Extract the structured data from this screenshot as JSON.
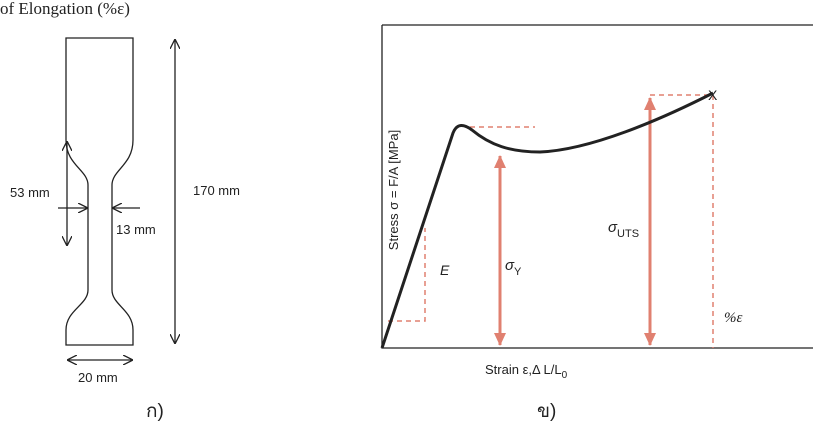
{
  "header": "of Elongation (%ε)",
  "specimen": {
    "gauge_length": "53 mm",
    "gauge_width": "13 mm",
    "total_length": "170 mm",
    "grip_width": "20 mm",
    "caption": "ก)"
  },
  "graph": {
    "y_axis_label": "Stress σ = F/A [MPa]",
    "x_axis_label": {
      "text": "Strain  ε,Δ L/L",
      "subscript": "0"
    },
    "modulus": "E",
    "yield": {
      "symbol": "σ",
      "subscript": "Y"
    },
    "uts": {
      "symbol": "σ",
      "subscript": "UTS"
    },
    "fracture": "X",
    "elongation": "%ε",
    "caption": "ข)"
  }
}
